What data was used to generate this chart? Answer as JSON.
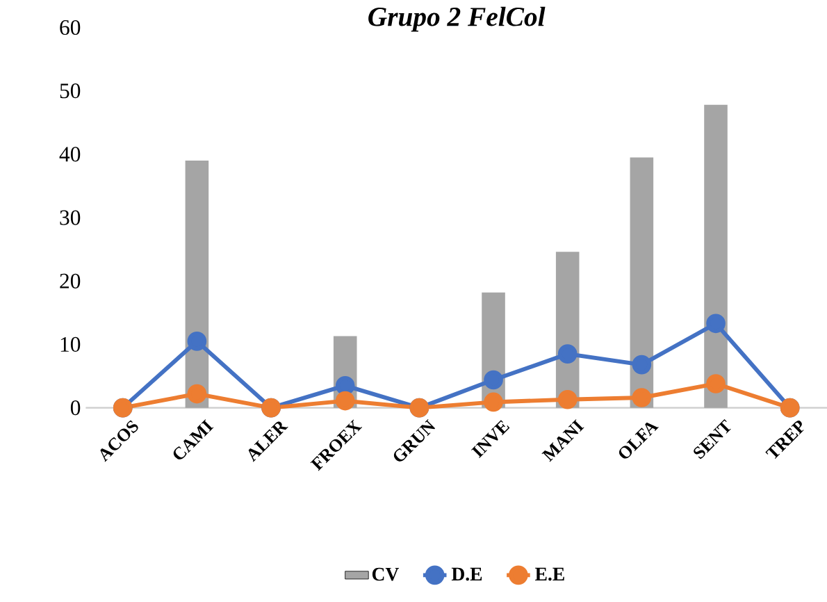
{
  "chart_data": {
    "type": "bar",
    "title": "Grupo 2 FelCol",
    "categories": [
      "ACOS",
      "CAMI",
      "ALER",
      "FROEX",
      "GRUN",
      "INVE",
      "MANI",
      "OLFA",
      "SENT",
      "TREP"
    ],
    "series": [
      {
        "name": "CV",
        "color": "#a5a5a5",
        "values": [
          0,
          39,
          0,
          11.3,
          0,
          18.2,
          24.6,
          39.5,
          47.8,
          0
        ]
      },
      {
        "name": "D.E",
        "type": "line",
        "color": "#4472c4",
        "values": [
          0,
          10.5,
          0,
          3.5,
          0,
          4.4,
          8.5,
          6.8,
          13.3,
          0
        ]
      },
      {
        "name": "E.E",
        "type": "line",
        "color": "#ed7d31",
        "values": [
          0,
          2.2,
          0,
          1.1,
          0,
          0.9,
          1.3,
          1.6,
          3.8,
          0
        ]
      }
    ],
    "ylim": [
      0,
      60
    ],
    "yticks": [
      0,
      10,
      20,
      30,
      40,
      50,
      60
    ],
    "legend": "bottom",
    "marker": "circle",
    "line_style": "solid"
  }
}
